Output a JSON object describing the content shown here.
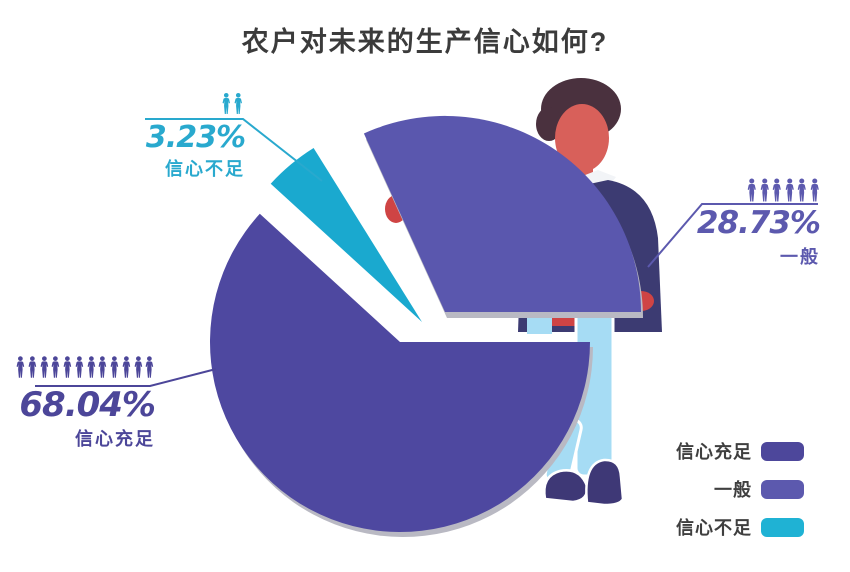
{
  "title": "农户对未来的生产信心如何?",
  "chart_data": {
    "type": "pie",
    "title": "农户对未来的生产信心如何?",
    "categories": [
      "信心充足",
      "一般",
      "信心不足"
    ],
    "values": [
      68.04,
      28.73,
      3.23
    ],
    "unit": "%",
    "slice_colors": [
      "#4e48a0",
      "#5a57ae",
      "#1aa9cf"
    ],
    "layout_hint": "average slice lifted out and held by illustrated man; low-confidence wedge exploded upper-left; legend bottom-right",
    "labels": [
      {
        "value_text": "68.04%",
        "category": "信心充足",
        "icon_count": 12,
        "color": "#4c4699"
      },
      {
        "value_text": "28.73%",
        "category": "一般",
        "icon_count": 6,
        "color": "#5c59ae"
      },
      {
        "value_text": "3.23%",
        "category": "信心不足",
        "icon_count": 2,
        "color": "#29a9ce"
      }
    ],
    "legend": {
      "position": "bottom-right",
      "items": [
        {
          "label": "信心充足",
          "color": "#4d479b"
        },
        {
          "label": "一般",
          "color": "#5c59ae"
        },
        {
          "label": "信心不足",
          "color": "#1fb2d4"
        }
      ]
    }
  },
  "illustration": {
    "name": "man-holding-pie-slice",
    "hair_color": "#4a313e",
    "skin_color": "#d8605a",
    "sweater_color": "#3c3b72",
    "collar_color": "#f2f4f7",
    "hand_color": "#cf4444",
    "pants_color": "#a6dcf4",
    "shoe_color": "#3e3876",
    "edge_color": "#b9b9c3"
  }
}
